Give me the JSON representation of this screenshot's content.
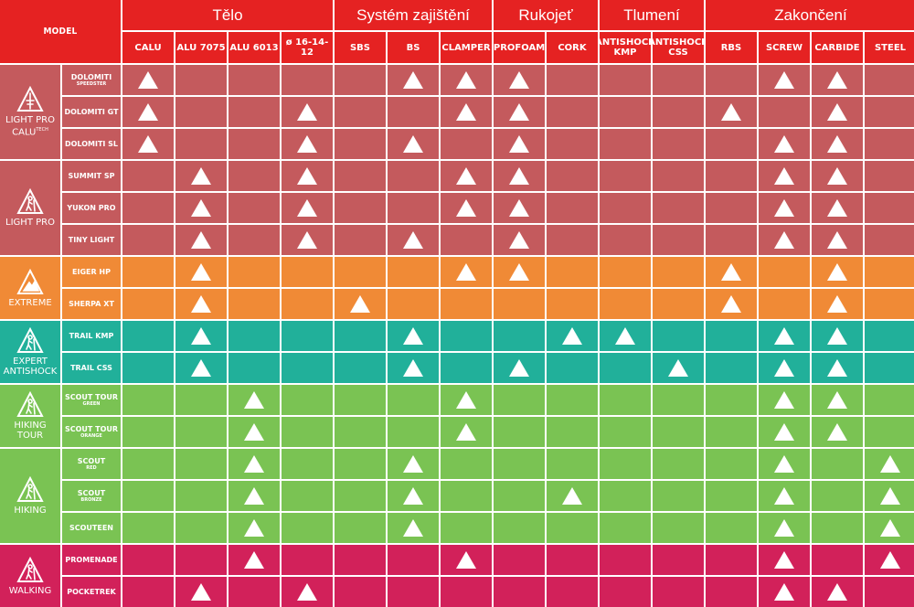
{
  "header": {
    "model_label": "MODEL",
    "groups": [
      {
        "label": "Tělo",
        "span": 4
      },
      {
        "label": "Systém zajištění",
        "span": 3
      },
      {
        "label": "Rukojeť",
        "span": 2
      },
      {
        "label": "Tlumení",
        "span": 2
      },
      {
        "label": "Zakončení",
        "span": 4
      }
    ],
    "columns": [
      "CALU",
      "ALU 7075",
      "ALU 6013",
      "ø 16-14-12",
      "SBS",
      "BS",
      "CLAMPER",
      "PROFOAM",
      "CORK",
      "ANTISHOCK KMP",
      "ANTISHOCK CSS",
      "RBS",
      "SCREW",
      "CARBIDE",
      "STEEL"
    ]
  },
  "colors": {
    "header": "#e52222",
    "lightpro_calu": "#c45a5d",
    "lightpro": "#c45a5d",
    "extreme": "#f08a36",
    "antishock": "#21b09a",
    "hiking_tour": "#7ac353",
    "hiking": "#7ac353",
    "walking": "#d2215a",
    "marker": "#ffffff"
  },
  "families": [
    {
      "name": "LIGHT PRO CALU",
      "suffix": "TECH",
      "icon": "trekking-pole-logo-icon",
      "color_key": "lightpro_calu",
      "models": [
        {
          "name": "DOLOMITI",
          "sub": "SPEEDSTER",
          "marks": [
            1,
            0,
            0,
            0,
            0,
            1,
            1,
            1,
            0,
            0,
            0,
            0,
            1,
            1,
            0
          ]
        },
        {
          "name": "DOLOMITI GT",
          "sub": "",
          "marks": [
            1,
            0,
            0,
            1,
            0,
            0,
            1,
            1,
            0,
            0,
            0,
            1,
            0,
            1,
            0
          ]
        },
        {
          "name": "DOLOMITI SL",
          "sub": "",
          "marks": [
            1,
            0,
            0,
            1,
            0,
            1,
            0,
            1,
            0,
            0,
            0,
            0,
            1,
            1,
            0
          ]
        }
      ]
    },
    {
      "name": "LIGHT PRO",
      "suffix": "",
      "icon": "hiker-icon",
      "color_key": "lightpro",
      "models": [
        {
          "name": "SUMMIT SP",
          "sub": "",
          "marks": [
            0,
            1,
            0,
            1,
            0,
            0,
            1,
            1,
            0,
            0,
            0,
            0,
            1,
            1,
            0
          ]
        },
        {
          "name": "YUKON PRO",
          "sub": "",
          "marks": [
            0,
            1,
            0,
            1,
            0,
            0,
            1,
            1,
            0,
            0,
            0,
            0,
            1,
            1,
            0
          ]
        },
        {
          "name": "TINY LIGHT",
          "sub": "",
          "marks": [
            0,
            1,
            0,
            1,
            0,
            1,
            0,
            1,
            0,
            0,
            0,
            0,
            1,
            1,
            0
          ]
        }
      ]
    },
    {
      "name": "EXTREME",
      "suffix": "",
      "icon": "mountain-climber-icon",
      "color_key": "extreme",
      "models": [
        {
          "name": "EIGER HP",
          "sub": "",
          "marks": [
            0,
            1,
            0,
            0,
            0,
            0,
            1,
            1,
            0,
            0,
            0,
            1,
            0,
            1,
            0
          ]
        },
        {
          "name": "SHERPA XT",
          "sub": "",
          "marks": [
            0,
            1,
            0,
            0,
            1,
            0,
            0,
            0,
            0,
            0,
            0,
            1,
            0,
            1,
            0
          ]
        }
      ]
    },
    {
      "name": "EXPERT ANTISHOCK",
      "suffix": "",
      "icon": "antishock-hiker-icon",
      "color_key": "antishock",
      "models": [
        {
          "name": "TRAIL KMP",
          "sub": "",
          "marks": [
            0,
            1,
            0,
            0,
            0,
            1,
            0,
            0,
            1,
            1,
            0,
            0,
            1,
            1,
            0
          ]
        },
        {
          "name": "TRAIL CSS",
          "sub": "",
          "marks": [
            0,
            1,
            0,
            0,
            0,
            1,
            0,
            1,
            0,
            0,
            1,
            0,
            1,
            1,
            0
          ]
        }
      ]
    },
    {
      "name": "HIKING TOUR",
      "suffix": "",
      "icon": "hiking-tour-icon",
      "color_key": "hiking_tour",
      "models": [
        {
          "name": "SCOUT TOUR",
          "sub": "GREEN",
          "marks": [
            0,
            0,
            1,
            0,
            0,
            0,
            1,
            0,
            0,
            0,
            0,
            0,
            1,
            1,
            0
          ]
        },
        {
          "name": "SCOUT TOUR",
          "sub": "ORANGE",
          "marks": [
            0,
            0,
            1,
            0,
            0,
            0,
            1,
            0,
            0,
            0,
            0,
            0,
            1,
            1,
            0
          ]
        }
      ]
    },
    {
      "name": "HIKING",
      "suffix": "",
      "icon": "hiking-icon",
      "color_key": "hiking",
      "models": [
        {
          "name": "SCOUT",
          "sub": "RED",
          "marks": [
            0,
            0,
            1,
            0,
            0,
            1,
            0,
            0,
            0,
            0,
            0,
            0,
            1,
            0,
            1
          ]
        },
        {
          "name": "SCOUT",
          "sub": "BRONZE",
          "marks": [
            0,
            0,
            1,
            0,
            0,
            1,
            0,
            0,
            1,
            0,
            0,
            0,
            1,
            0,
            1
          ]
        },
        {
          "name": "SCOUTEEN",
          "sub": "",
          "marks": [
            0,
            0,
            1,
            0,
            0,
            1,
            0,
            0,
            0,
            0,
            0,
            0,
            1,
            0,
            1
          ]
        }
      ]
    },
    {
      "name": "WALKING",
      "suffix": "",
      "icon": "walker-icon",
      "color_key": "walking",
      "models": [
        {
          "name": "PROMENADE",
          "sub": "",
          "marks": [
            0,
            0,
            1,
            0,
            0,
            0,
            1,
            0,
            0,
            0,
            0,
            0,
            1,
            0,
            1
          ]
        },
        {
          "name": "POCKETREK",
          "sub": "",
          "marks": [
            0,
            1,
            0,
            1,
            0,
            0,
            0,
            0,
            0,
            0,
            0,
            0,
            1,
            1,
            0
          ]
        }
      ]
    }
  ]
}
